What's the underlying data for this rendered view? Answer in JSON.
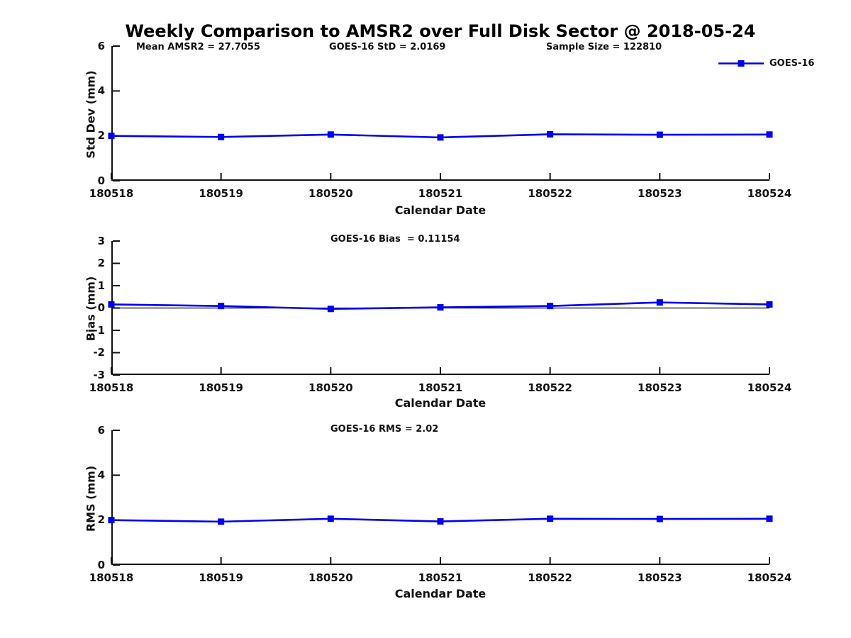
{
  "figure": {
    "title": "Weekly Comparison to AMSR2 over Full Disk Sector @ 2018-05-24",
    "background_color": "#ffffff",
    "line_color": "#0000ee",
    "axis_color": "#111111",
    "legend": {
      "label": "GOES-16",
      "marker": "filled-square",
      "position": "top-right"
    }
  },
  "chart_data": [
    {
      "type": "line",
      "title": "",
      "annotations": [
        "Mean AMSR2 = 27.7055",
        "GOES-16 StD = 2.0169",
        "Sample Size = 122810"
      ],
      "categories": [
        "180518",
        "180519",
        "180520",
        "180521",
        "180522",
        "180523",
        "180524"
      ],
      "series": [
        {
          "name": "GOES-16",
          "values": [
            2.0,
            1.95,
            2.06,
            1.93,
            2.07,
            2.05,
            2.06
          ]
        }
      ],
      "xlabel": "Calendar Date",
      "ylabel": "Std Dev (mm)",
      "ylim": [
        0,
        6
      ],
      "yticks": [
        0,
        2,
        4,
        6
      ],
      "grid": false,
      "zero_line": false,
      "marker": "square"
    },
    {
      "type": "line",
      "title": "GOES-16 Bias  = 0.11154",
      "annotations": [],
      "categories": [
        "180518",
        "180519",
        "180520",
        "180521",
        "180522",
        "180523",
        "180524"
      ],
      "series": [
        {
          "name": "GOES-16",
          "values": [
            0.16,
            0.09,
            -0.04,
            0.03,
            0.09,
            0.25,
            0.16
          ]
        }
      ],
      "xlabel": "Calendar Date",
      "ylabel": "Bias (mm)",
      "ylim": [
        -3,
        3
      ],
      "yticks": [
        -3,
        -2,
        -1,
        0,
        1,
        2,
        3
      ],
      "grid": false,
      "zero_line": true,
      "marker": "square"
    },
    {
      "type": "line",
      "title": "GOES-16 RMS = 2.02",
      "annotations": [],
      "categories": [
        "180518",
        "180519",
        "180520",
        "180521",
        "180522",
        "180523",
        "180524"
      ],
      "series": [
        {
          "name": "GOES-16",
          "values": [
            2.0,
            1.93,
            2.06,
            1.94,
            2.06,
            2.05,
            2.06
          ]
        }
      ],
      "xlabel": "Calendar Date",
      "ylabel": "RMS (mm)",
      "ylim": [
        0,
        6
      ],
      "yticks": [
        0,
        2,
        4,
        6
      ],
      "grid": false,
      "zero_line": false,
      "marker": "square"
    }
  ]
}
